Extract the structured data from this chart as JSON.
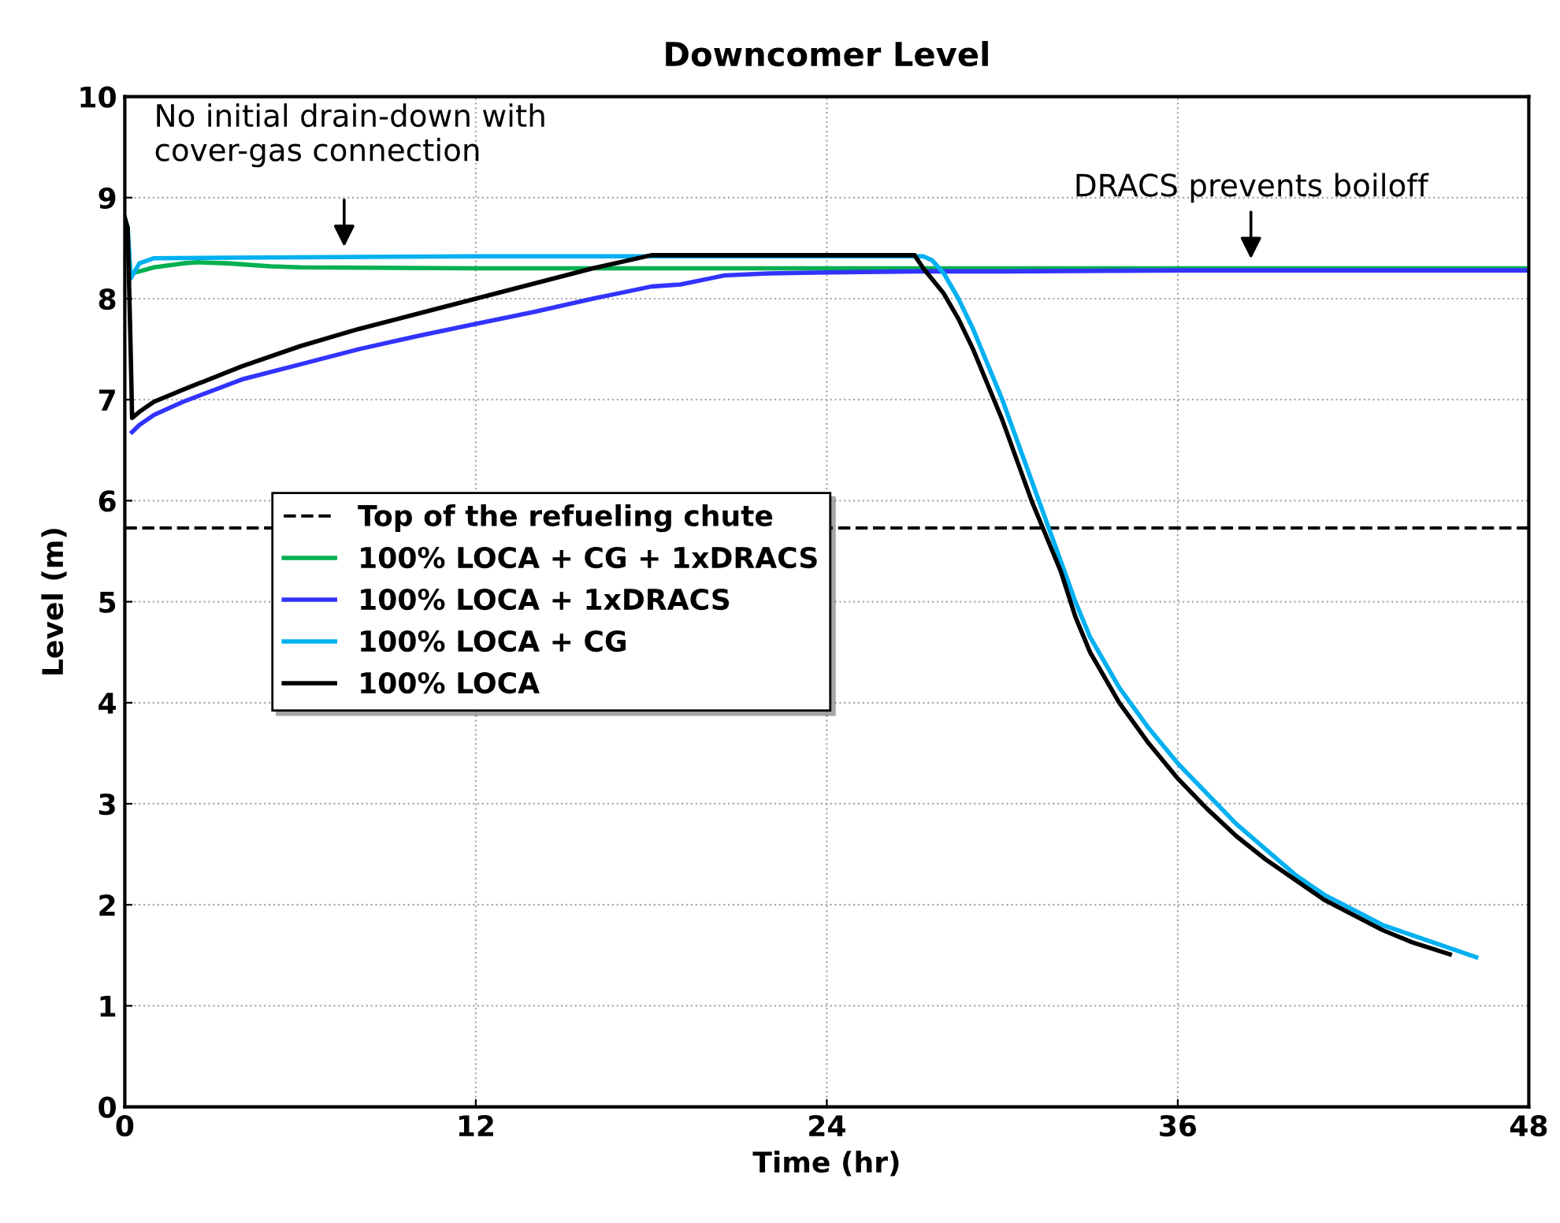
{
  "chart_data": {
    "type": "line",
    "title": "Downcomer Level",
    "xlabel": "Time (hr)",
    "ylabel": "Level (m)",
    "xlim": [
      0,
      48
    ],
    "xticks": [
      0,
      12,
      24,
      36,
      48
    ],
    "ylim": [
      0,
      10
    ],
    "yticks": [
      0,
      1,
      2,
      3,
      4,
      5,
      6,
      7,
      8,
      9,
      10
    ],
    "grid": true,
    "legend": "center left",
    "marker": "none",
    "line_style": "solid",
    "ref_lines": [
      {
        "axis": "y",
        "value": 5.73,
        "label": "Top of the refueling chute",
        "color": "#000000",
        "line_style": "dashed"
      }
    ],
    "series": [
      {
        "name": "100% LOCA + CG + 1xDRACS",
        "color": "#00b050",
        "x": [
          0,
          0.1,
          0.2,
          0.5,
          1,
          2,
          2.5,
          3.5,
          5,
          6,
          12,
          24,
          30,
          36,
          42,
          48
        ],
        "values": [
          8.8,
          8.6,
          8.25,
          8.27,
          8.31,
          8.35,
          8.36,
          8.35,
          8.32,
          8.31,
          8.3,
          8.3,
          8.3,
          8.3,
          8.3,
          8.3
        ]
      },
      {
        "name": "100% LOCA + 1xDRACS",
        "color": "#3333ff",
        "x": [
          0.25,
          0.5,
          1,
          2,
          4,
          6,
          8,
          10,
          12,
          14,
          16,
          18,
          19,
          20,
          20.5,
          22,
          24,
          27,
          30,
          36,
          42,
          48
        ],
        "values": [
          6.68,
          6.75,
          6.85,
          6.98,
          7.2,
          7.35,
          7.5,
          7.63,
          7.75,
          7.87,
          8.0,
          8.12,
          8.14,
          8.2,
          8.23,
          8.25,
          8.26,
          8.27,
          8.27,
          8.28,
          8.28,
          8.28
        ]
      },
      {
        "name": "100% LOCA + CG",
        "color": "#00b0f0",
        "x": [
          0,
          0.1,
          0.2,
          0.5,
          1,
          6,
          12,
          18,
          24,
          27.3,
          27.6,
          28,
          28.5,
          29,
          29.5,
          30,
          30.5,
          31,
          31.5,
          32,
          32.5,
          33,
          33.5,
          34,
          35,
          36,
          37,
          38,
          39,
          40,
          41,
          42,
          43,
          44,
          45,
          46.2
        ],
        "values": [
          8.8,
          8.7,
          8.2,
          8.35,
          8.4,
          8.41,
          8.42,
          8.42,
          8.42,
          8.42,
          8.38,
          8.25,
          8.0,
          7.7,
          7.35,
          7.0,
          6.6,
          6.2,
          5.8,
          5.4,
          5.0,
          4.65,
          4.4,
          4.15,
          3.75,
          3.4,
          3.1,
          2.8,
          2.55,
          2.3,
          2.1,
          1.95,
          1.8,
          1.7,
          1.6,
          1.48
        ]
      },
      {
        "name": "100% LOCA",
        "color": "#000000",
        "x": [
          0,
          0.1,
          0.2,
          0.25,
          0.5,
          1,
          2,
          4,
          6,
          8,
          10,
          12,
          14,
          16,
          18,
          20,
          24,
          27,
          27.3,
          28,
          28.5,
          29,
          29.5,
          30,
          30.5,
          31,
          31.5,
          32,
          32.5,
          33,
          34,
          35,
          36,
          37,
          38,
          39,
          40,
          41,
          42,
          43,
          44,
          45.3
        ],
        "values": [
          8.8,
          8.7,
          7.5,
          6.82,
          6.88,
          6.98,
          7.1,
          7.33,
          7.53,
          7.7,
          7.85,
          8.0,
          8.15,
          8.3,
          8.43,
          8.43,
          8.43,
          8.43,
          8.3,
          8.05,
          7.8,
          7.5,
          7.15,
          6.8,
          6.4,
          6.0,
          5.65,
          5.3,
          4.85,
          4.5,
          4.0,
          3.6,
          3.25,
          2.95,
          2.68,
          2.45,
          2.25,
          2.05,
          1.9,
          1.75,
          1.63,
          1.51
        ]
      }
    ],
    "annotations": [
      {
        "text": "No initial drain-down with\ncover-gas connection",
        "x": 7.5,
        "y": 8.42
      },
      {
        "text": "DRACS prevents boiloff",
        "x": 38.5,
        "y": 8.3
      }
    ]
  }
}
